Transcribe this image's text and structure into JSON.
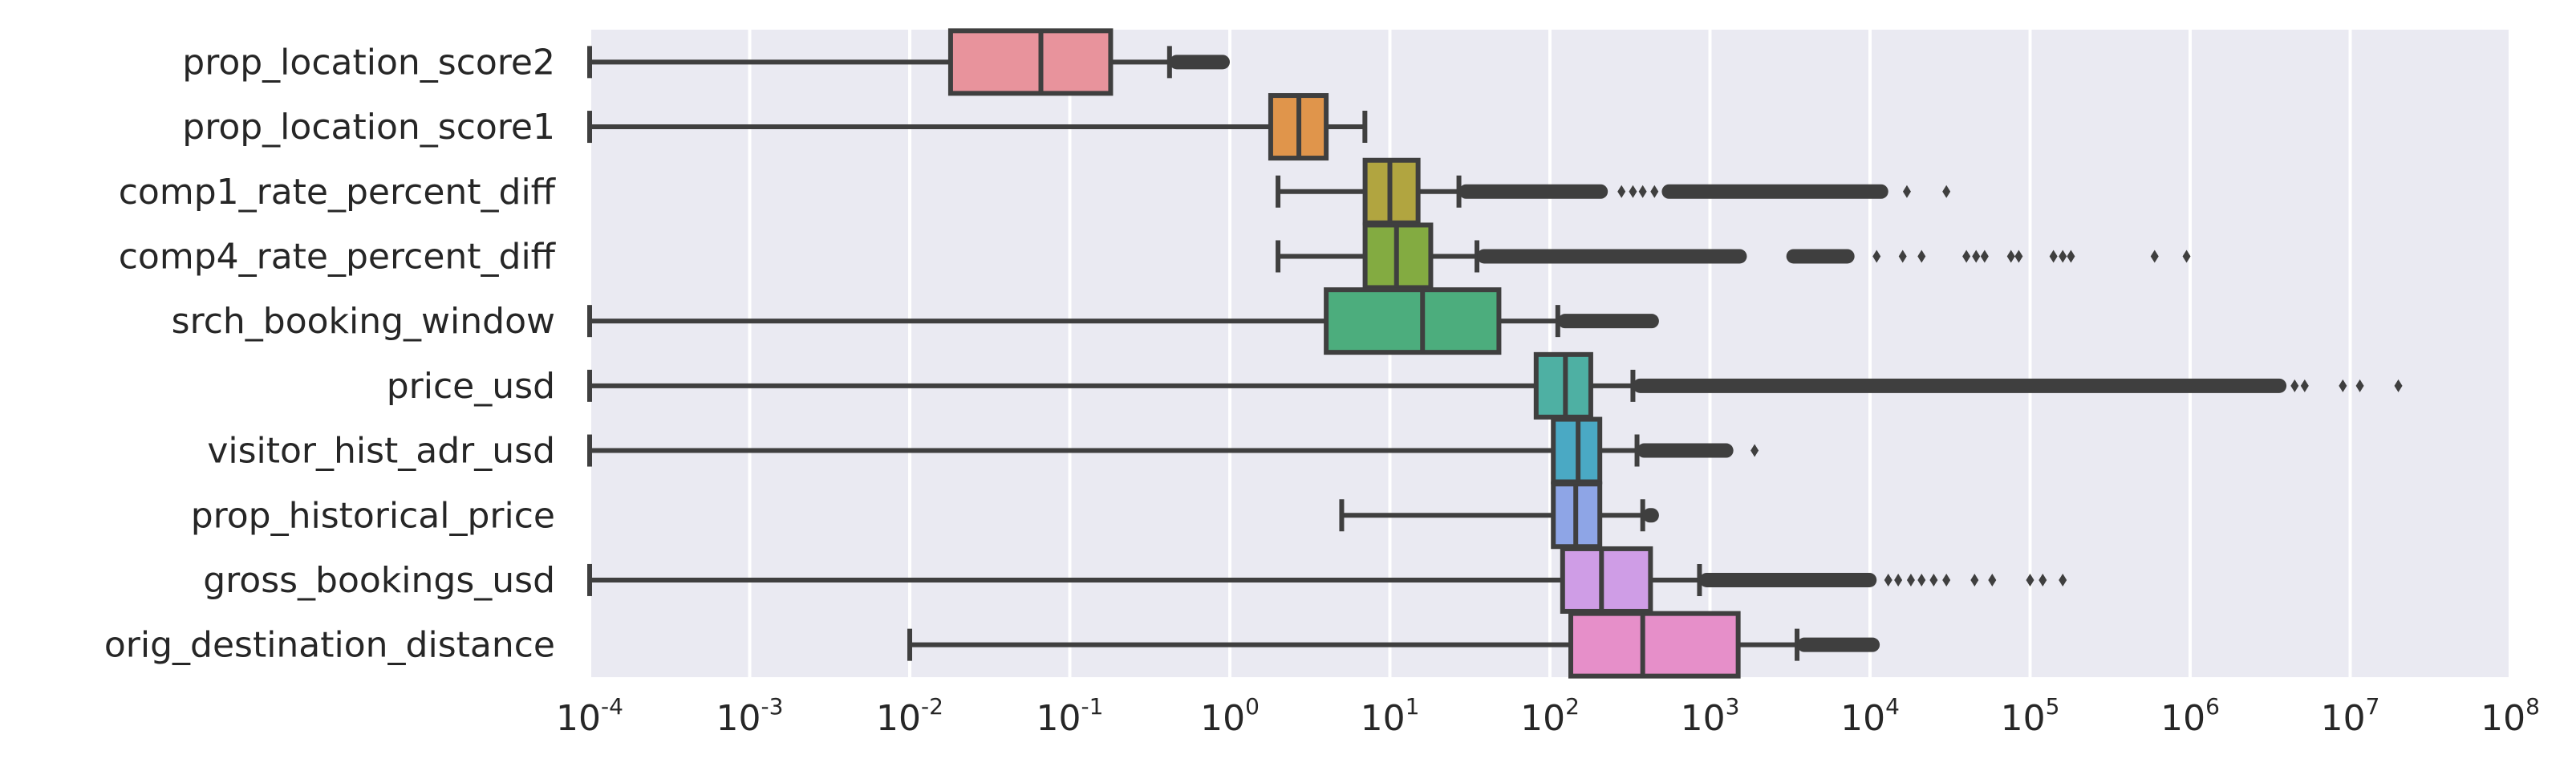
{
  "chart_data": {
    "type": "boxplot",
    "orientation": "horizontal",
    "x_scale": "log10",
    "xlim": [
      0.0001,
      100000000
    ],
    "grid": true,
    "legend": "none",
    "categories": [
      "prop_location_score2",
      "prop_location_score1",
      "comp1_rate_percent_diff",
      "comp4_rate_percent_diff",
      "srch_booking_window",
      "price_usd",
      "visitor_hist_adr_usd",
      "prop_historical_price",
      "gross_bookings_usd",
      "orig_destination_distance"
    ],
    "x_ticks": [
      {
        "base": "10",
        "exp": "-4",
        "value": 0.0001
      },
      {
        "base": "10",
        "exp": "-3",
        "value": 0.001
      },
      {
        "base": "10",
        "exp": "-2",
        "value": 0.01
      },
      {
        "base": "10",
        "exp": "-1",
        "value": 0.1
      },
      {
        "base": "10",
        "exp": "0",
        "value": 1
      },
      {
        "base": "10",
        "exp": "1",
        "value": 10
      },
      {
        "base": "10",
        "exp": "2",
        "value": 100
      },
      {
        "base": "10",
        "exp": "3",
        "value": 1000
      },
      {
        "base": "10",
        "exp": "4",
        "value": 10000
      },
      {
        "base": "10",
        "exp": "5",
        "value": 100000
      },
      {
        "base": "10",
        "exp": "6",
        "value": 1000000
      },
      {
        "base": "10",
        "exp": "7",
        "value": 10000000
      },
      {
        "base": "10",
        "exp": "8",
        "value": 100000000
      }
    ],
    "boxes": [
      {
        "name": "prop_location_score2",
        "color": "#e8939c",
        "whisker_low": 0.0001,
        "q1": 0.018,
        "median": 0.066,
        "q3": 0.18,
        "whisker_high": 0.42,
        "outlier_bands": [
          [
            0.42,
            1.0
          ]
        ],
        "outliers": []
      },
      {
        "name": "prop_location_score1",
        "color": "#e0954b",
        "whisker_low": 0.0001,
        "q1": 1.8,
        "median": 2.7,
        "q3": 4.0,
        "whisker_high": 6.98,
        "outlier_bands": [],
        "outliers": []
      },
      {
        "name": "comp1_rate_percent_diff",
        "color": "#b1a540",
        "whisker_low": 2,
        "q1": 7,
        "median": 10,
        "q3": 15,
        "whisker_high": 27,
        "outlier_bands": [
          [
            27,
            230
          ],
          [
            500,
            13000
          ]
        ],
        "outliers": [
          280,
          330,
          380,
          450,
          17000,
          30000
        ]
      },
      {
        "name": "comp4_rate_percent_diff",
        "color": "#83ab41",
        "whisker_low": 2,
        "q1": 7,
        "median": 11,
        "q3": 18,
        "whisker_high": 35,
        "outlier_bands": [
          [
            35,
            1700
          ],
          [
            3000,
            8000
          ]
        ],
        "outliers": [
          11000,
          16000,
          21000,
          40000,
          46000,
          52000,
          76000,
          85000,
          140000,
          160000,
          180000,
          600000,
          950000
        ]
      },
      {
        "name": "srch_booking_window",
        "color": "#4cad7d",
        "whisker_low": 0.0001,
        "q1": 4,
        "median": 16,
        "q3": 48,
        "whisker_high": 112,
        "outlier_bands": [
          [
            112,
            480
          ]
        ],
        "outliers": []
      },
      {
        "name": "price_usd",
        "color": "#4eb0a3",
        "whisker_low": 0.0001,
        "q1": 82,
        "median": 125,
        "q3": 180,
        "whisker_high": 330,
        "outlier_bands": [
          [
            330,
            4000000
          ]
        ],
        "outliers": [
          4500000,
          5200000,
          9000000,
          11500000,
          20000000
        ]
      },
      {
        "name": "visitor_hist_adr_usd",
        "color": "#4aa9c4",
        "whisker_low": 0.0001,
        "q1": 105,
        "median": 150,
        "q3": 205,
        "whisker_high": 350,
        "outlier_bands": [
          [
            350,
            1400
          ]
        ],
        "outliers": [
          1900
        ]
      },
      {
        "name": "prop_historical_price",
        "color": "#8ea5e6",
        "whisker_low": 5,
        "q1": 105,
        "median": 145,
        "q3": 205,
        "whisker_high": 380,
        "outlier_bands": [
          [
            380,
            480
          ]
        ],
        "outliers": []
      },
      {
        "name": "gross_bookings_usd",
        "color": "#cf9de6",
        "whisker_low": 0.0001,
        "q1": 120,
        "median": 210,
        "q3": 425,
        "whisker_high": 860,
        "outlier_bands": [
          [
            860,
            11000
          ]
        ],
        "outliers": [
          13000,
          15000,
          18000,
          21000,
          25000,
          30000,
          45000,
          58000,
          100000,
          120000,
          160000
        ]
      },
      {
        "name": "orig_destination_distance",
        "color": "#e68fc9",
        "whisker_low": 0.01,
        "q1": 135,
        "median": 380,
        "q3": 1500,
        "whisker_high": 3500,
        "outlier_bands": [
          [
            3500,
            11500
          ]
        ],
        "outliers": []
      }
    ],
    "colors": {
      "plot_background": "#eaeaf2",
      "grid": "#ffffff",
      "box_line": "#3f3f3f",
      "text": "#262626"
    }
  }
}
